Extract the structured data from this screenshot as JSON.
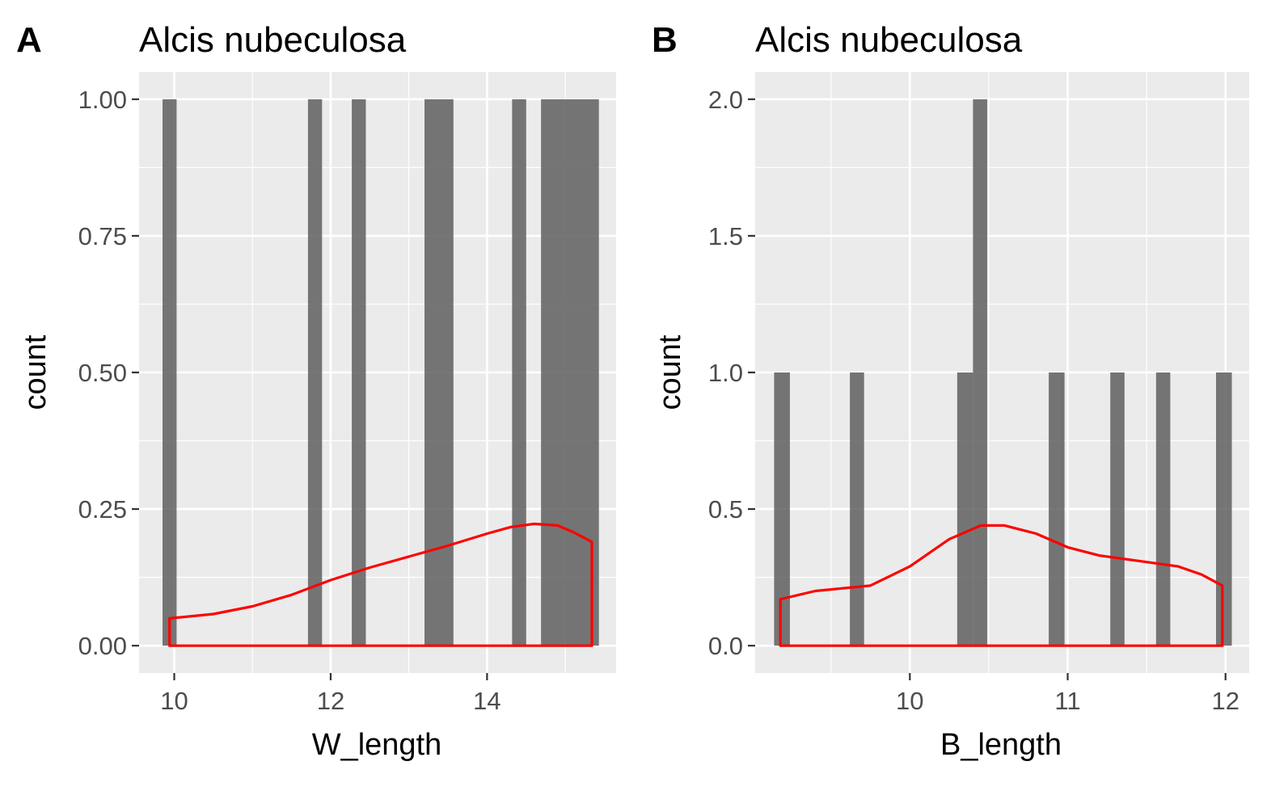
{
  "chart_data": [
    {
      "type": "bar",
      "tag": "A",
      "title": "Alcis nubeculosa",
      "xlabel": "W_length",
      "ylabel": "count",
      "xlim": [
        9.55,
        15.65
      ],
      "ylim": [
        -0.05,
        1.05
      ],
      "x_ticks": [
        10,
        12,
        14
      ],
      "x_tick_labels": [
        "10",
        "12",
        "14"
      ],
      "y_ticks": [
        0,
        0.25,
        0.5,
        0.75,
        1
      ],
      "y_tick_labels": [
        "0.00",
        "0.25",
        "0.50",
        "0.75",
        "1.00"
      ],
      "bars": [
        {
          "x0": 9.85,
          "x1": 10.03,
          "count": 1
        },
        {
          "x0": 11.71,
          "x1": 11.89,
          "count": 1
        },
        {
          "x0": 12.27,
          "x1": 12.45,
          "count": 1
        },
        {
          "x0": 13.2,
          "x1": 13.57,
          "count": 1
        },
        {
          "x0": 14.32,
          "x1": 14.5,
          "count": 1
        },
        {
          "x0": 14.69,
          "x1": 15.43,
          "count": 1
        }
      ],
      "density": {
        "color": "#ff0000",
        "x": [
          9.94,
          10.5,
          11.0,
          11.5,
          12.0,
          12.5,
          13.0,
          13.5,
          14.0,
          14.3,
          14.6,
          14.9,
          15.1,
          15.34
        ],
        "y": [
          0.05,
          0.058,
          0.072,
          0.093,
          0.12,
          0.143,
          0.163,
          0.183,
          0.205,
          0.217,
          0.223,
          0.22,
          0.208,
          0.19
        ]
      },
      "grid": true,
      "panel_background": "#ebebeb",
      "bar_color": "#595959"
    },
    {
      "type": "bar",
      "tag": "B",
      "title": "Alcis nubeculosa",
      "xlabel": "B_length",
      "ylabel": "count",
      "xlim": [
        9.02,
        12.15
      ],
      "ylim": [
        -0.1,
        2.1
      ],
      "x_ticks": [
        10,
        11,
        12
      ],
      "x_tick_labels": [
        "10",
        "11",
        "12"
      ],
      "y_ticks": [
        0,
        0.5,
        1,
        1.5,
        2
      ],
      "y_tick_labels": [
        "0.0",
        "0.5",
        "1.0",
        "1.5",
        "2.0"
      ],
      "bars": [
        {
          "x0": 9.14,
          "x1": 9.24,
          "count": 1
        },
        {
          "x0": 9.62,
          "x1": 9.71,
          "count": 1
        },
        {
          "x0": 10.3,
          "x1": 10.4,
          "count": 1
        },
        {
          "x0": 10.4,
          "x1": 10.49,
          "count": 2
        },
        {
          "x0": 10.88,
          "x1": 10.98,
          "count": 1
        },
        {
          "x0": 11.27,
          "x1": 11.36,
          "count": 1
        },
        {
          "x0": 11.56,
          "x1": 11.65,
          "count": 1
        },
        {
          "x0": 11.94,
          "x1": 12.04,
          "count": 1
        }
      ],
      "density": {
        "color": "#ff0000",
        "x": [
          9.18,
          9.4,
          9.75,
          10.0,
          10.25,
          10.45,
          10.6,
          10.8,
          11.0,
          11.2,
          11.45,
          11.7,
          11.85,
          11.98
        ],
        "y": [
          0.17,
          0.2,
          0.22,
          0.29,
          0.39,
          0.44,
          0.44,
          0.41,
          0.36,
          0.33,
          0.31,
          0.29,
          0.26,
          0.22
        ]
      },
      "grid": true,
      "panel_background": "#ebebeb",
      "bar_color": "#595959"
    }
  ]
}
